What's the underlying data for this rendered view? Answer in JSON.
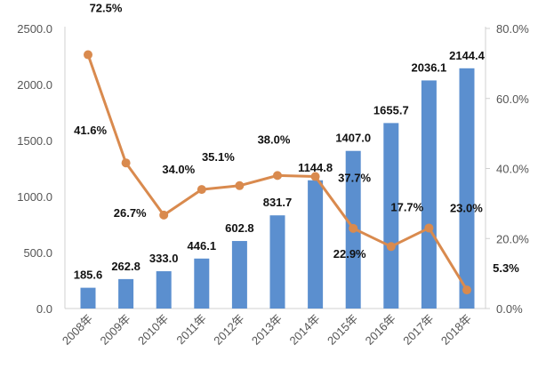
{
  "chart_data": {
    "type": "bar+line",
    "title": "",
    "categories": [
      "2008年",
      "2009年",
      "2010年",
      "2011年",
      "2012年",
      "2013年",
      "2014年",
      "2015年",
      "2016年",
      "2017年",
      "2018年"
    ],
    "series": [
      {
        "type": "bar",
        "axis": "left",
        "values": [
          185.6,
          262.8,
          333.0,
          446.1,
          602.8,
          831.7,
          1144.8,
          1407.0,
          1655.7,
          2036.1,
          2144.4
        ],
        "labels": [
          "185.6",
          "262.8",
          "333.0",
          "446.1",
          "602.8",
          "831.7",
          "1144.8",
          "1407.0",
          "1655.7",
          "2036.1",
          "2144.4"
        ],
        "color": "#5b8fcf"
      },
      {
        "type": "line",
        "axis": "right",
        "values": [
          72.5,
          41.6,
          26.7,
          34.0,
          35.1,
          38.0,
          37.7,
          22.9,
          17.7,
          23.0,
          5.3
        ],
        "labels": [
          "72.5%",
          "41.6%",
          "26.7%",
          "34.0%",
          "35.1%",
          "38.0%",
          "37.7%",
          "22.9%",
          "17.7%",
          "23.0%",
          "5.3%"
        ],
        "color": "#d98a4e"
      }
    ],
    "left_axis": {
      "ylim": [
        0,
        2500
      ],
      "ticks": [
        "0.0",
        "500.0",
        "1000.0",
        "1500.0",
        "2000.0",
        "2500.0"
      ]
    },
    "right_axis": {
      "ylim": [
        0,
        80
      ],
      "ticks": [
        "0.0%",
        "20.0%",
        "40.0%",
        "60.0%",
        "80.0%"
      ]
    },
    "grid": false,
    "legend": "none"
  }
}
